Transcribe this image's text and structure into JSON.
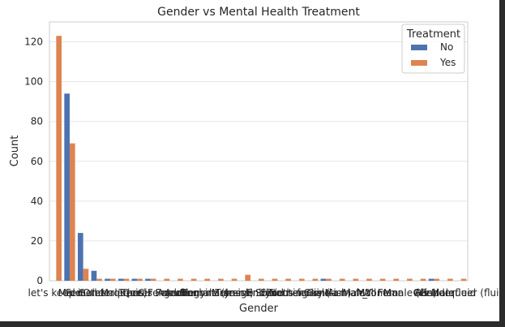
{
  "chart_data": {
    "type": "bar",
    "title": "Gender vs Mental Health Treatment",
    "xlabel": "Gender",
    "ylabel": "Count",
    "ylim": [
      0,
      130
    ],
    "yticks": [
      0,
      20,
      40,
      60,
      80,
      100,
      120
    ],
    "grid": true,
    "legend": {
      "title": "Treatment",
      "position": "top-right"
    },
    "colors": {
      "No": "#4c72b0",
      "Yes": "#dd8452"
    },
    "categories": [
      "let's keep it",
      "Male",
      "Female",
      "Other",
      "Genderqueer",
      "Male (cis)",
      "Queer",
      "Trans Female",
      "Cis Female",
      "Agender",
      "Androgyne",
      "Nonbinary",
      "Female (trans)",
      "Male-ish",
      "Transgender",
      "Enby",
      "Fluid",
      "Neuter",
      "Trans-female",
      "Something kinda male?",
      "Cis Man",
      "Guy (-ish) ^_^",
      "Malr",
      "Mail",
      "Woman",
      "Man",
      "Female (cis)",
      "All",
      "Cis Male",
      "Genderfluid",
      "Genderqueer (fluid)"
    ],
    "series": [
      {
        "name": "No",
        "values": [
          0,
          94,
          24,
          5,
          1,
          1,
          1,
          1,
          0,
          0,
          0,
          0,
          0,
          0,
          0,
          0,
          0,
          0,
          0,
          0,
          1,
          0,
          0,
          0,
          0,
          0,
          0,
          0,
          1,
          0,
          0
        ]
      },
      {
        "name": "Yes",
        "values": [
          123,
          69,
          6,
          1,
          1,
          1,
          1,
          1,
          1,
          1,
          1,
          1,
          1,
          1,
          3,
          1,
          1,
          1,
          1,
          1,
          1,
          1,
          1,
          1,
          1,
          1,
          1,
          1,
          1,
          1,
          1
        ]
      }
    ]
  }
}
